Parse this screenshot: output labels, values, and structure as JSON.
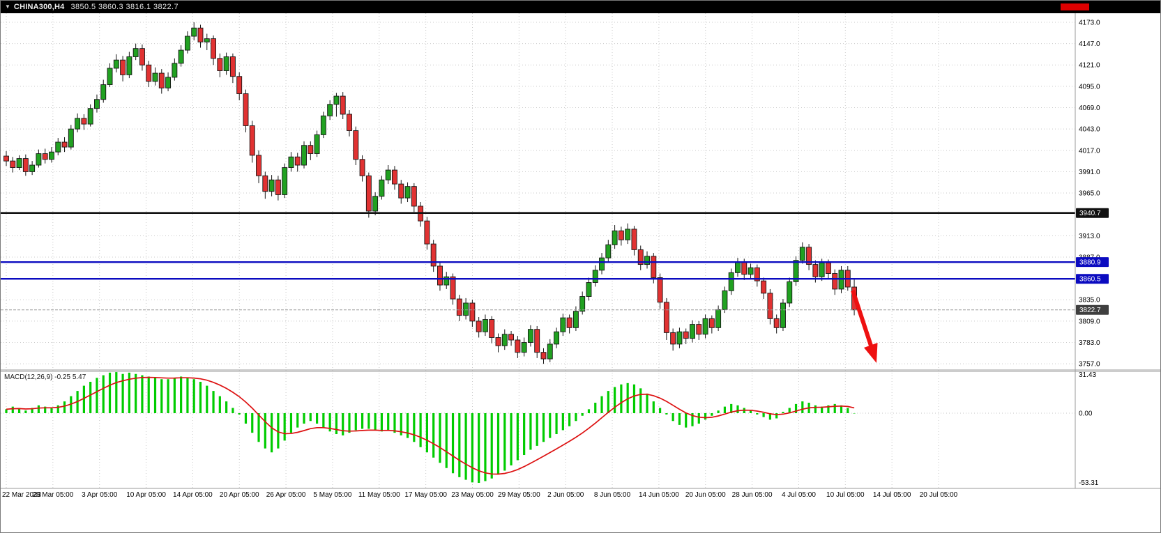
{
  "titlebar": {
    "caret": "▼",
    "symbol_timeframe": "CHINA300,H4",
    "ohlc_values": "3850.5 3860.3 3816.1 3822.7"
  },
  "colors": {
    "bull": "#21a121",
    "bear": "#e13232",
    "wick": "#151515",
    "grid": "#c8c8c8",
    "panel_border": "#9a9a9a",
    "macd_histogram": "#00cc00",
    "macd_signal": "#dd1111",
    "arrow": "#ee1111",
    "axis_text": "#000000",
    "titlebar_bg": "#000000",
    "line_black": "#111111",
    "line_blue": "#0b0bc0",
    "bid_line": "#999999"
  },
  "chart_data": {
    "type": "candlestick",
    "symbol": "CHINA300",
    "timeframe": "H4",
    "last_bar": {
      "open": 3850.5,
      "high": 3860.3,
      "low": 3816.1,
      "close": 3822.7
    },
    "ylim": [
      3749.5,
      4184
    ],
    "grid": true,
    "price_ticks": [
      "4173.0",
      "4147.0",
      "4121.0",
      "4095.0",
      "4069.0",
      "4043.0",
      "4017.0",
      "3991.0",
      "3965.0",
      "3913.0",
      "3887.0",
      "3835.0",
      "3809.0",
      "3783.0",
      "3757.0"
    ],
    "price_badges": [
      {
        "label": "3940.7",
        "price": 3940.7,
        "bg": "#111111",
        "fg": "#ffffff"
      },
      {
        "label": "3880.9",
        "price": 3880.9,
        "bg": "#0b0bc0",
        "fg": "#ffffff"
      },
      {
        "label": "3860.5",
        "price": 3860.5,
        "bg": "#0b0bc0",
        "fg": "#ffffff"
      },
      {
        "label": "3822.7",
        "price": 3822.7,
        "bg": "#3f3f3f",
        "fg": "#ffffff"
      }
    ],
    "hlines": [
      {
        "price": 3940.7,
        "color": "#111111",
        "width": 2.6,
        "dash": ""
      },
      {
        "price": 3880.9,
        "color": "#0b0bc0",
        "width": 2.4,
        "dash": ""
      },
      {
        "price": 3860.5,
        "color": "#0b0bc0",
        "width": 2.4,
        "dash": ""
      },
      {
        "price": 3822.7,
        "color": "#999999",
        "width": 1,
        "dash": "4 2"
      }
    ],
    "time_labels": [
      "22 Mar 2023",
      "28 Mar 05:00",
      "3 Apr 05:00",
      "10 Apr 05:00",
      "14 Apr 05:00",
      "20 Apr 05:00",
      "26 Apr 05:00",
      "5 May 05:00",
      "11 May 05:00",
      "17 May 05:00",
      "23 May 05:00",
      "29 May 05:00",
      "2 Jun 05:00",
      "8 Jun 05:00",
      "14 Jun 05:00",
      "20 Jun 05:00",
      "28 Jun 05:00",
      "4 Jul 05:00",
      "10 Jul 05:00",
      "14 Jul 05:00",
      "20 Jul 05:00"
    ],
    "candles": [
      [
        4010,
        4016,
        3998,
        4004
      ],
      [
        4004,
        4009,
        3990,
        3996
      ],
      [
        3996,
        4011,
        3993,
        4007
      ],
      [
        4007,
        4012,
        3986,
        3991
      ],
      [
        3991,
        4004,
        3987,
        3999
      ],
      [
        3999,
        4018,
        3996,
        4013
      ],
      [
        4013,
        4019,
        4001,
        4006
      ],
      [
        4006,
        4021,
        4002,
        4015
      ],
      [
        4015,
        4032,
        4011,
        4027
      ],
      [
        4027,
        4033,
        4015,
        4021
      ],
      [
        4021,
        4048,
        4018,
        4043
      ],
      [
        4043,
        4062,
        4039,
        4056
      ],
      [
        4056,
        4061,
        4042,
        4049
      ],
      [
        4049,
        4073,
        4046,
        4068
      ],
      [
        4068,
        4085,
        4063,
        4079
      ],
      [
        4079,
        4103,
        4075,
        4097
      ],
      [
        4097,
        4123,
        4094,
        4117
      ],
      [
        4117,
        4134,
        4112,
        4127
      ],
      [
        4127,
        4132,
        4101,
        4109
      ],
      [
        4109,
        4137,
        4105,
        4131
      ],
      [
        4131,
        4147,
        4127,
        4141
      ],
      [
        4141,
        4146,
        4114,
        4121
      ],
      [
        4121,
        4126,
        4094,
        4101
      ],
      [
        4101,
        4118,
        4096,
        4111
      ],
      [
        4111,
        4116,
        4086,
        4093
      ],
      [
        4093,
        4112,
        4089,
        4106
      ],
      [
        4106,
        4129,
        4102,
        4123
      ],
      [
        4123,
        4145,
        4119,
        4139
      ],
      [
        4139,
        4162,
        4135,
        4156
      ],
      [
        4156,
        4173,
        4151,
        4166
      ],
      [
        4166,
        4170,
        4142,
        4149
      ],
      [
        4149,
        4159,
        4139,
        4153
      ],
      [
        4153,
        4157,
        4121,
        4129
      ],
      [
        4129,
        4135,
        4106,
        4114
      ],
      [
        4114,
        4136,
        4109,
        4131
      ],
      [
        4131,
        4135,
        4099,
        4107
      ],
      [
        4107,
        4112,
        4078,
        4086
      ],
      [
        4086,
        4091,
        4039,
        4047
      ],
      [
        4047,
        4053,
        4002,
        4011
      ],
      [
        4011,
        4017,
        3977,
        3986
      ],
      [
        3986,
        3991,
        3958,
        3967
      ],
      [
        3967,
        3987,
        3961,
        3981
      ],
      [
        3981,
        3986,
        3956,
        3963
      ],
      [
        3963,
        4001,
        3959,
        3996
      ],
      [
        3996,
        4015,
        3991,
        4009
      ],
      [
        4009,
        4014,
        3991,
        3999
      ],
      [
        3999,
        4028,
        3995,
        4023
      ],
      [
        4023,
        4028,
        4005,
        4013
      ],
      [
        4013,
        4041,
        4009,
        4036
      ],
      [
        4036,
        4064,
        4032,
        4059
      ],
      [
        4059,
        4078,
        4054,
        4073
      ],
      [
        4073,
        4087,
        4058,
        4083
      ],
      [
        4083,
        4088,
        4055,
        4061
      ],
      [
        4061,
        4066,
        4034,
        4041
      ],
      [
        4041,
        4046,
        3999,
        4006
      ],
      [
        4006,
        4011,
        3979,
        3986
      ],
      [
        3986,
        3990,
        3935,
        3943
      ],
      [
        3943,
        3966,
        3938,
        3961
      ],
      [
        3961,
        3986,
        3957,
        3981
      ],
      [
        3981,
        3999,
        3976,
        3993
      ],
      [
        3993,
        3998,
        3969,
        3976
      ],
      [
        3976,
        3981,
        3952,
        3959
      ],
      [
        3959,
        3978,
        3954,
        3973
      ],
      [
        3973,
        3977,
        3942,
        3949
      ],
      [
        3949,
        3954,
        3924,
        3931
      ],
      [
        3931,
        3936,
        3896,
        3903
      ],
      [
        3903,
        3908,
        3869,
        3876
      ],
      [
        3876,
        3881,
        3846,
        3853
      ],
      [
        3853,
        3869,
        3848,
        3863
      ],
      [
        3863,
        3867,
        3829,
        3836
      ],
      [
        3836,
        3841,
        3809,
        3816
      ],
      [
        3816,
        3837,
        3811,
        3831
      ],
      [
        3831,
        3835,
        3802,
        3809
      ],
      [
        3809,
        3814,
        3789,
        3796
      ],
      [
        3796,
        3817,
        3791,
        3811
      ],
      [
        3811,
        3815,
        3782,
        3789
      ],
      [
        3789,
        3794,
        3771,
        3779
      ],
      [
        3779,
        3799,
        3774,
        3793
      ],
      [
        3793,
        3797,
        3779,
        3786
      ],
      [
        3786,
        3791,
        3764,
        3771
      ],
      [
        3771,
        3789,
        3766,
        3783
      ],
      [
        3783,
        3804,
        3778,
        3799
      ],
      [
        3799,
        3803,
        3764,
        3771
      ],
      [
        3771,
        3776,
        3757,
        3763
      ],
      [
        3763,
        3787,
        3759,
        3781
      ],
      [
        3781,
        3801,
        3776,
        3796
      ],
      [
        3796,
        3818,
        3791,
        3813
      ],
      [
        3813,
        3817,
        3794,
        3801
      ],
      [
        3801,
        3827,
        3797,
        3821
      ],
      [
        3821,
        3845,
        3817,
        3839
      ],
      [
        3839,
        3862,
        3834,
        3856
      ],
      [
        3856,
        3877,
        3851,
        3871
      ],
      [
        3871,
        3892,
        3866,
        3886
      ],
      [
        3886,
        3908,
        3881,
        3902
      ],
      [
        3902,
        3926,
        3897,
        3919
      ],
      [
        3919,
        3924,
        3901,
        3908
      ],
      [
        3908,
        3928,
        3903,
        3921
      ],
      [
        3921,
        3925,
        3889,
        3896
      ],
      [
        3896,
        3901,
        3871,
        3878
      ],
      [
        3878,
        3894,
        3873,
        3888
      ],
      [
        3888,
        3892,
        3855,
        3862
      ],
      [
        3862,
        3867,
        3824,
        3832
      ],
      [
        3832,
        3837,
        3786,
        3795
      ],
      [
        3795,
        3800,
        3773,
        3781
      ],
      [
        3781,
        3801,
        3776,
        3796
      ],
      [
        3796,
        3800,
        3781,
        3788
      ],
      [
        3788,
        3810,
        3783,
        3805
      ],
      [
        3805,
        3809,
        3786,
        3793
      ],
      [
        3793,
        3817,
        3788,
        3812
      ],
      [
        3812,
        3816,
        3794,
        3801
      ],
      [
        3801,
        3828,
        3797,
        3823
      ],
      [
        3823,
        3851,
        3819,
        3846
      ],
      [
        3846,
        3873,
        3841,
        3868
      ],
      [
        3868,
        3886,
        3863,
        3881
      ],
      [
        3881,
        3885,
        3859,
        3866
      ],
      [
        3866,
        3879,
        3861,
        3874
      ],
      [
        3874,
        3878,
        3851,
        3858
      ],
      [
        3858,
        3862,
        3836,
        3843
      ],
      [
        3843,
        3848,
        3805,
        3812
      ],
      [
        3812,
        3817,
        3794,
        3801
      ],
      [
        3801,
        3836,
        3797,
        3831
      ],
      [
        3831,
        3862,
        3826,
        3857
      ],
      [
        3857,
        3888,
        3852,
        3883
      ],
      [
        3883,
        3905,
        3879,
        3899
      ],
      [
        3899,
        3903,
        3871,
        3878
      ],
      [
        3878,
        3883,
        3856,
        3863
      ],
      [
        3863,
        3885,
        3858,
        3880
      ],
      [
        3880,
        3884,
        3860,
        3867
      ],
      [
        3867,
        3872,
        3841,
        3848
      ],
      [
        3848,
        3876,
        3843,
        3871
      ],
      [
        3871,
        3876,
        3846,
        3850.5
      ],
      [
        3850.5,
        3860.3,
        3816.1,
        3822.7
      ]
    ],
    "indicator": {
      "name_label": "MACD(12,26,9) -0.25 5.47",
      "type": "macd_histogram",
      "signal_period": 9,
      "macd_ylim": [
        -57.5,
        32
      ],
      "scale_labels": {
        "top": "31.43",
        "zero": "0.00",
        "bottom": "-53.31"
      },
      "values": [
        3,
        5,
        4,
        2,
        4,
        6,
        5,
        4,
        6,
        9,
        13,
        17,
        21,
        24,
        27,
        29,
        31,
        31.4,
        30,
        31,
        30,
        29,
        28,
        27,
        26,
        26,
        27,
        28,
        27,
        26,
        24,
        21,
        17,
        13,
        9,
        4,
        -1,
        -8,
        -15,
        -22,
        -27,
        -30,
        -27,
        -21,
        -15,
        -11,
        -8,
        -6,
        -8,
        -11,
        -14,
        -16,
        -17,
        -15,
        -13,
        -12,
        -12,
        -13,
        -14,
        -13,
        -15,
        -17,
        -19,
        -22,
        -26,
        -30,
        -34,
        -38,
        -42,
        -46,
        -49,
        -51,
        -53,
        -53.3,
        -52,
        -50,
        -47,
        -44,
        -40,
        -36,
        -32,
        -28,
        -25,
        -22,
        -19,
        -16,
        -13,
        -10,
        -6,
        -2,
        3,
        8,
        13,
        17,
        20,
        22,
        23,
        22,
        19,
        15,
        9,
        4,
        -1,
        -6,
        -9,
        -11,
        -10,
        -8,
        -5,
        -2,
        2,
        5,
        7,
        6,
        4,
        2,
        -1,
        -3,
        -5,
        -4,
        1,
        4,
        7,
        9,
        8,
        6,
        5,
        6,
        7,
        6,
        4,
        -0.25
      ]
    },
    "annotations": [
      {
        "type": "arrow",
        "direction": "down-right",
        "color": "#ee1111"
      }
    ]
  }
}
